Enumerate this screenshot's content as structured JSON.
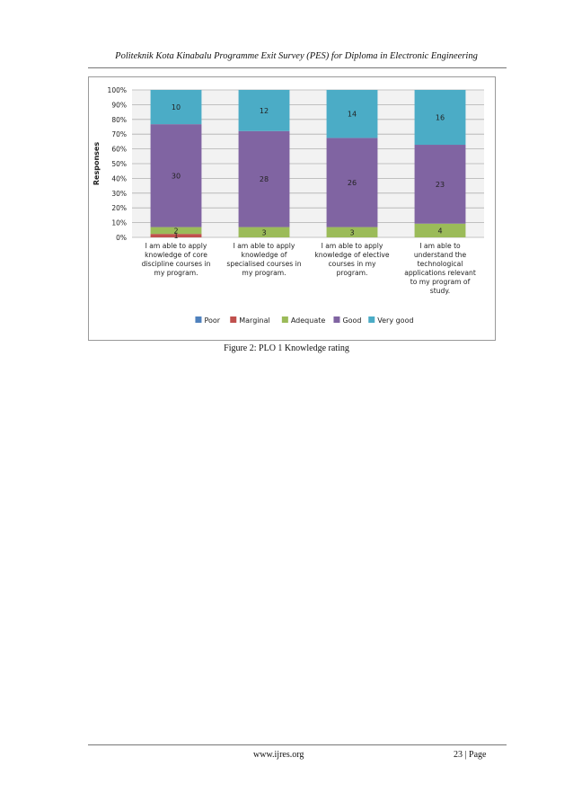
{
  "header": {
    "title": "Politeknik Kota Kinabalu Programme Exit Survey (PES) for Diploma in Electronic Engineering"
  },
  "figure": {
    "caption": "Figure 2: PLO 1 Knowledge rating"
  },
  "footer": {
    "url": "www.ijres.org",
    "page": "23 | Page"
  },
  "chart_data": {
    "type": "bar",
    "stacked": true,
    "percent": true,
    "ylabel": "Responses",
    "y_ticks": [
      "0%",
      "10%",
      "20%",
      "30%",
      "40%",
      "50%",
      "60%",
      "70%",
      "80%",
      "90%",
      "100%"
    ],
    "ylim": [
      0,
      100
    ],
    "grid": true,
    "legend_position": "bottom",
    "categories": [
      [
        "I am able to apply",
        "knowledge of core",
        "discipline courses in",
        "my program."
      ],
      [
        "I am able to apply",
        "knowledge of",
        "specialised courses in",
        "my program."
      ],
      [
        "I am able to apply",
        "knowledge of elective",
        "courses in my",
        "program."
      ],
      [
        "I am able to",
        "understand the",
        "technological",
        "applications relevant",
        "to my program of",
        "study."
      ]
    ],
    "series": [
      {
        "name": "Poor",
        "color": "#4f81bd",
        "values": [
          0,
          0,
          0,
          0
        ],
        "labels": [
          "",
          "",
          "",
          ""
        ]
      },
      {
        "name": "Marginal",
        "color": "#c0504d",
        "values": [
          1,
          0,
          0,
          0
        ],
        "labels": [
          "1",
          "",
          "",
          ""
        ]
      },
      {
        "name": "Adequate",
        "color": "#9bbb59",
        "values": [
          2,
          3,
          3,
          4
        ],
        "labels": [
          "2",
          "3",
          "3",
          "4"
        ]
      },
      {
        "name": "Good",
        "color": "#8064a2",
        "values": [
          30,
          28,
          26,
          23
        ],
        "labels": [
          "30",
          "28",
          "26",
          "23"
        ]
      },
      {
        "name": "Very good",
        "color": "#4bacc6",
        "values": [
          10,
          12,
          14,
          16
        ],
        "labels": [
          "10",
          "12",
          "14",
          "16"
        ]
      }
    ]
  }
}
